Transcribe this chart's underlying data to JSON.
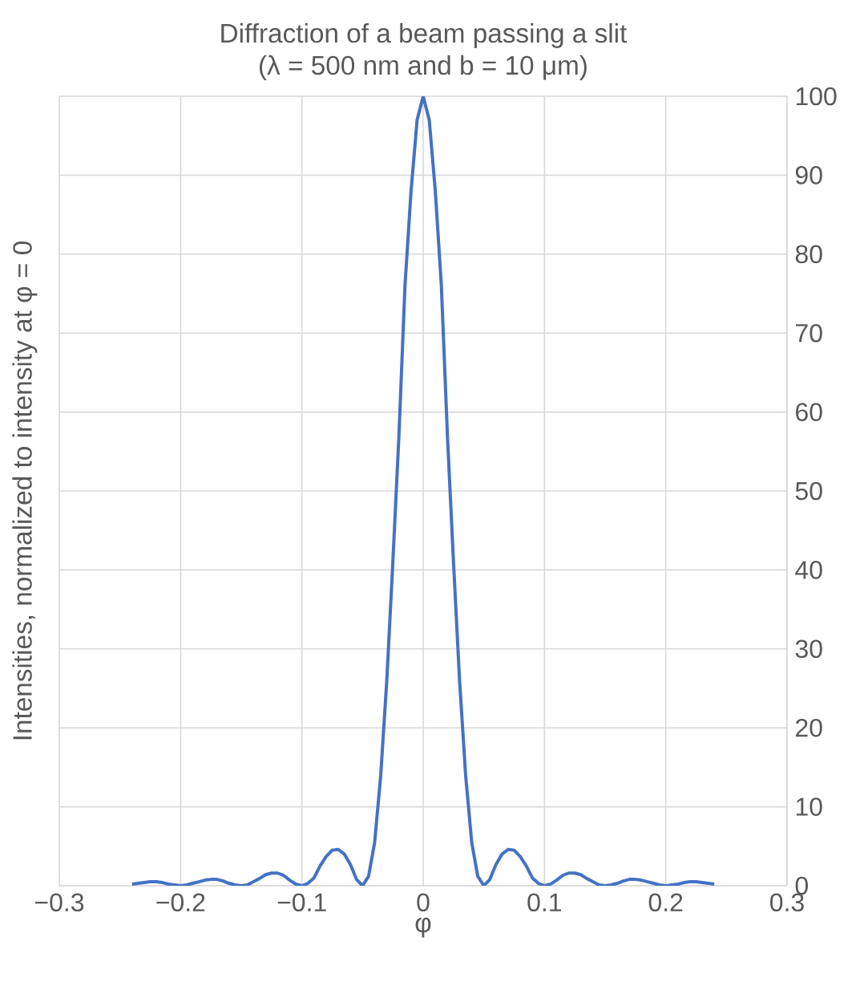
{
  "chart_data": {
    "type": "line",
    "title": "Diffraction of a beam passing a slit",
    "subtitle": "(λ = 500 nm and b = 10 μm)",
    "xlabel": "φ",
    "ylabel": "Intensities, normalized to intensity at φ = 0",
    "x": [
      -0.24,
      -0.235,
      -0.23,
      -0.225,
      -0.22,
      -0.215,
      -0.21,
      -0.205,
      -0.2,
      -0.195,
      -0.19,
      -0.185,
      -0.18,
      -0.175,
      -0.17,
      -0.165,
      -0.16,
      -0.155,
      -0.15,
      -0.145,
      -0.14,
      -0.135,
      -0.13,
      -0.125,
      -0.12,
      -0.115,
      -0.11,
      -0.105,
      -0.1,
      -0.095,
      -0.09,
      -0.085,
      -0.08,
      -0.075,
      -0.07,
      -0.065,
      -0.06,
      -0.055,
      -0.05,
      -0.045,
      -0.04,
      -0.035,
      -0.03,
      -0.025,
      -0.02,
      -0.015,
      -0.01,
      -0.005,
      0,
      0.005,
      0.01,
      0.015,
      0.02,
      0.025,
      0.03,
      0.035,
      0.04,
      0.045,
      0.05,
      0.055,
      0.06,
      0.065,
      0.07,
      0.075,
      0.08,
      0.085,
      0.09,
      0.095,
      0.1,
      0.105,
      0.11,
      0.115,
      0.12,
      0.125,
      0.13,
      0.135,
      0.14,
      0.145,
      0.15,
      0.155,
      0.16,
      0.165,
      0.17,
      0.175,
      0.18,
      0.185,
      0.19,
      0.195,
      0.2,
      0.205,
      0.21,
      0.215,
      0.22,
      0.225,
      0.23,
      0.235,
      0.24
    ],
    "series": [
      {
        "color": "#4472c4",
        "values": [
          0.2,
          0.3,
          0.4,
          0.5,
          0.5,
          0.4,
          0.2,
          0.1,
          0,
          0.1,
          0.3,
          0.5,
          0.7,
          0.8,
          0.8,
          0.6,
          0.3,
          0.1,
          0,
          0.1,
          0.5,
          0.9,
          1.4,
          1.6,
          1.6,
          1.3,
          0.7,
          0.2,
          0,
          0.3,
          1.0,
          2.5,
          3.7,
          4.5,
          4.6,
          4.0,
          2.7,
          0.8,
          0,
          1.2,
          5.5,
          14,
          26,
          41,
          57,
          76,
          88,
          97,
          100,
          97,
          88,
          76,
          57,
          41,
          26,
          14,
          5.5,
          1.2,
          0,
          0.8,
          2.7,
          4.0,
          4.6,
          4.5,
          3.7,
          2.5,
          1.0,
          0.3,
          0,
          0.2,
          0.7,
          1.3,
          1.6,
          1.6,
          1.4,
          0.9,
          0.5,
          0.1,
          0,
          0.1,
          0.3,
          0.6,
          0.8,
          0.8,
          0.7,
          0.5,
          0.3,
          0.1,
          0,
          0.1,
          0.2,
          0.4,
          0.5,
          0.5,
          0.4,
          0.3,
          0.2
        ]
      }
    ],
    "xlim": [
      -0.3,
      0.3
    ],
    "xticks": [
      {
        "value": -0.3,
        "label": "−0.3"
      },
      {
        "value": -0.2,
        "label": "−0.2"
      },
      {
        "value": -0.1,
        "label": "−0.1"
      },
      0,
      0.1,
      0.2,
      0.3
    ],
    "ylim": [
      0,
      100
    ],
    "yticks": [
      0,
      10,
      20,
      30,
      40,
      50,
      60,
      70,
      80,
      90,
      100
    ],
    "grid": true,
    "marker": "none",
    "line_style": "solid"
  }
}
